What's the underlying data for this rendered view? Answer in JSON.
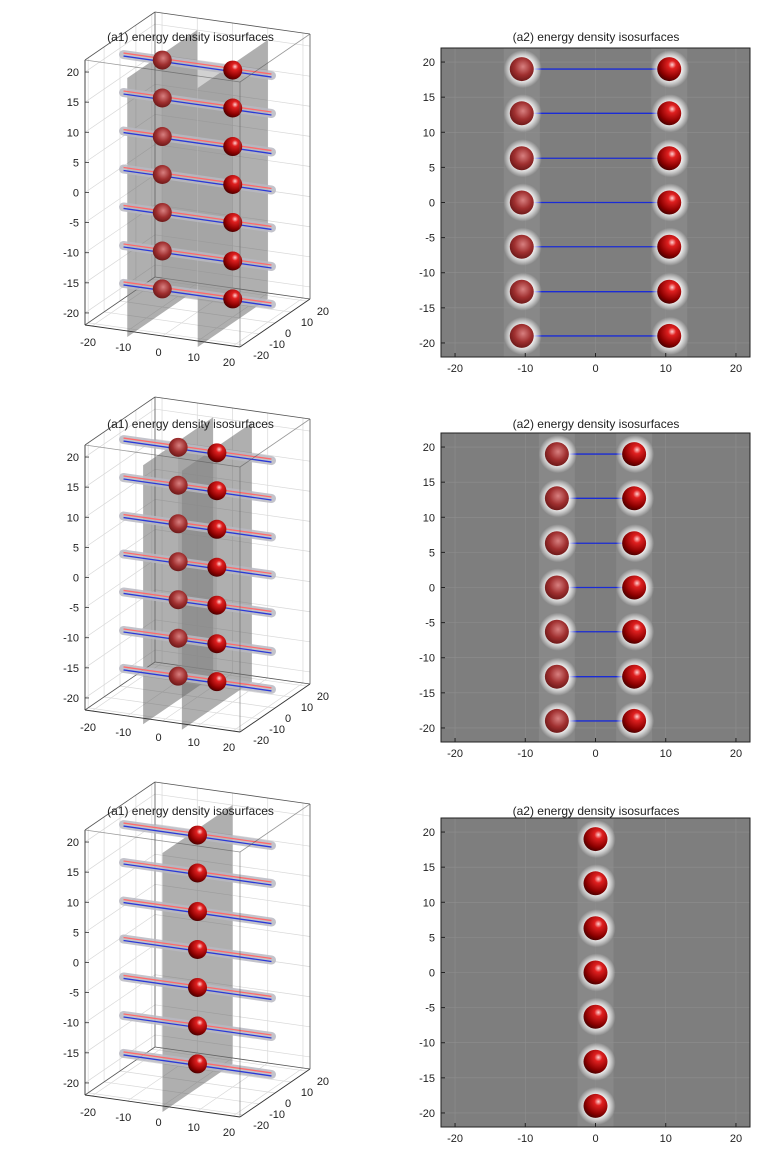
{
  "chart_data": [
    {
      "id": "row1-3d",
      "type": "scatter",
      "title": "(a1) energy density isosurfaces",
      "view": "3d-perspective",
      "x_ticks": [
        "-20",
        "-10",
        "0",
        "10",
        "20"
      ],
      "y_ticks": [
        "-20",
        "-10",
        "0",
        "10",
        "20"
      ],
      "z_ticks": [
        "-20",
        "-15",
        "-10",
        "-5",
        "0",
        "5",
        "10",
        "15",
        "20"
      ],
      "xlim": [
        -22,
        22
      ],
      "ylim": [
        -22,
        22
      ],
      "zlim": [
        -22,
        22
      ],
      "sphere_x": [
        -10,
        10
      ],
      "rows_z": [
        -19,
        -12.7,
        -6.3,
        0,
        6.3,
        12.7,
        19
      ]
    },
    {
      "id": "row1-2d",
      "type": "scatter",
      "title": "(a2) energy density isosurfaces",
      "x_ticks": [
        "-20",
        "-10",
        "0",
        "10",
        "20"
      ],
      "y_ticks": [
        "-20",
        "-15",
        "-10",
        "-5",
        "0",
        "5",
        "10",
        "15",
        "20"
      ],
      "xlim": [
        -22,
        22
      ],
      "ylim": [
        -22,
        22
      ],
      "series": [
        {
          "name": "left spheres",
          "x": [
            -10.5,
            -10.5,
            -10.5,
            -10.5,
            -10.5,
            -10.5,
            -10.5
          ],
          "y": [
            -19,
            -12.7,
            -6.3,
            0,
            6.3,
            12.7,
            19
          ]
        },
        {
          "name": "right spheres",
          "x": [
            10.5,
            10.5,
            10.5,
            10.5,
            10.5,
            10.5,
            10.5
          ],
          "y": [
            -19,
            -12.7,
            -6.3,
            0,
            6.3,
            12.7,
            19
          ]
        }
      ],
      "links": true
    },
    {
      "id": "row2-3d",
      "type": "scatter",
      "title": "(a1) energy density isosurfaces",
      "view": "3d-perspective",
      "x_ticks": [
        "-20",
        "-10",
        "0",
        "10",
        "20"
      ],
      "y_ticks": [
        "-20",
        "-10",
        "0",
        "10",
        "20"
      ],
      "z_ticks": [
        "-20",
        "-15",
        "-10",
        "-5",
        "0",
        "5",
        "10",
        "15",
        "20"
      ],
      "xlim": [
        -22,
        22
      ],
      "ylim": [
        -22,
        22
      ],
      "zlim": [
        -22,
        22
      ],
      "sphere_x": [
        -5.5,
        5.5
      ],
      "rows_z": [
        -19,
        -12.7,
        -6.3,
        0,
        6.3,
        12.7,
        19
      ]
    },
    {
      "id": "row2-2d",
      "type": "scatter",
      "title": "(a2) energy density isosurfaces",
      "x_ticks": [
        "-20",
        "-10",
        "0",
        "10",
        "20"
      ],
      "y_ticks": [
        "-20",
        "-15",
        "-10",
        "-5",
        "0",
        "5",
        "10",
        "15",
        "20"
      ],
      "xlim": [
        -22,
        22
      ],
      "ylim": [
        -22,
        22
      ],
      "series": [
        {
          "name": "left spheres",
          "x": [
            -5.5,
            -5.5,
            -5.5,
            -5.5,
            -5.5,
            -5.5,
            -5.5
          ],
          "y": [
            -19,
            -12.7,
            -6.3,
            0,
            6.3,
            12.7,
            19
          ]
        },
        {
          "name": "right spheres",
          "x": [
            5.5,
            5.5,
            5.5,
            5.5,
            5.5,
            5.5,
            5.5
          ],
          "y": [
            -19,
            -12.7,
            -6.3,
            0,
            6.3,
            12.7,
            19
          ]
        }
      ],
      "links": true
    },
    {
      "id": "row3-3d",
      "type": "scatter",
      "title": "(a1) energy density isosurfaces",
      "view": "3d-perspective",
      "x_ticks": [
        "-20",
        "-10",
        "0",
        "10",
        "20"
      ],
      "y_ticks": [
        "-20",
        "-10",
        "0",
        "10",
        "20"
      ],
      "z_ticks": [
        "-20",
        "-15",
        "-10",
        "-5",
        "0",
        "5",
        "10",
        "15",
        "20"
      ],
      "xlim": [
        -22,
        22
      ],
      "ylim": [
        -22,
        22
      ],
      "zlim": [
        -22,
        22
      ],
      "sphere_x": [
        0
      ],
      "rows_z": [
        -19,
        -12.7,
        -6.3,
        0,
        6.3,
        12.7,
        19
      ]
    },
    {
      "id": "row3-2d",
      "type": "scatter",
      "title": "(a2) energy density isosurfaces",
      "x_ticks": [
        "-20",
        "-10",
        "0",
        "10",
        "20"
      ],
      "y_ticks": [
        "-20",
        "-15",
        "-10",
        "-5",
        "0",
        "5",
        "10",
        "15",
        "20"
      ],
      "xlim": [
        -22,
        22
      ],
      "ylim": [
        -22,
        22
      ],
      "series": [
        {
          "name": "merged spheres",
          "x": [
            0,
            0,
            0,
            0,
            0,
            0,
            0
          ],
          "y": [
            -19,
            -12.7,
            -6.3,
            0,
            6.3,
            12.7,
            19
          ]
        }
      ],
      "links": false
    }
  ]
}
